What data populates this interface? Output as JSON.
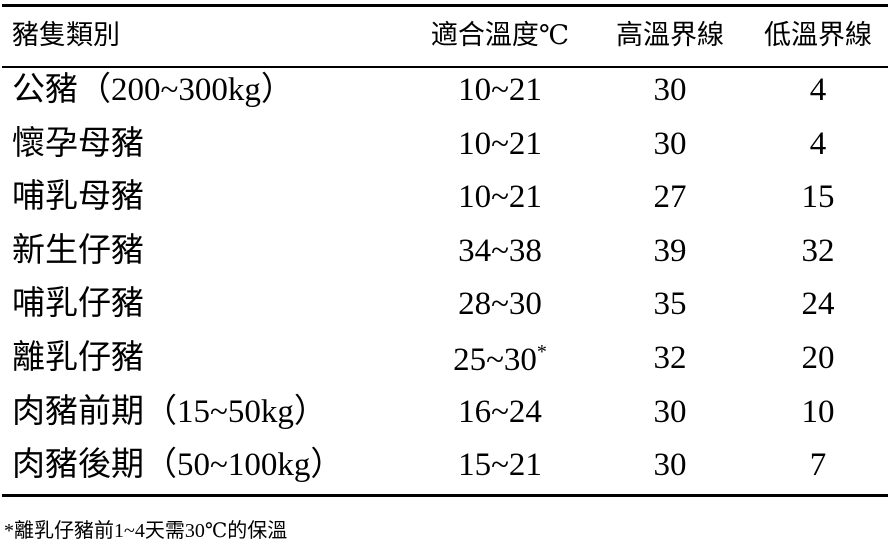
{
  "table": {
    "header": [
      "豬隻類別",
      "適合溫度℃",
      "高溫界線",
      "低溫界線"
    ],
    "rows": [
      [
        "公豬（200~300kg）",
        "10~21",
        "30",
        "4"
      ],
      [
        "懷孕母豬",
        "10~21",
        "30",
        "4"
      ],
      [
        "哺乳母豬",
        "10~21",
        "27",
        "15"
      ],
      [
        "新生仔豬",
        "34~38",
        "39",
        "32"
      ],
      [
        "哺乳仔豬",
        "28~30",
        "35",
        "24"
      ],
      [
        "離乳仔豬",
        {
          "text": "25~30",
          "sup": "*"
        },
        "32",
        "20"
      ],
      [
        "肉豬前期（15~50kg）",
        "16~24",
        "30",
        "10"
      ],
      [
        "肉豬後期（50~100kg）",
        "15~21",
        "30",
        "7"
      ]
    ]
  },
  "footnote": "*離乳仔豬前1~4天需30℃的保溫"
}
